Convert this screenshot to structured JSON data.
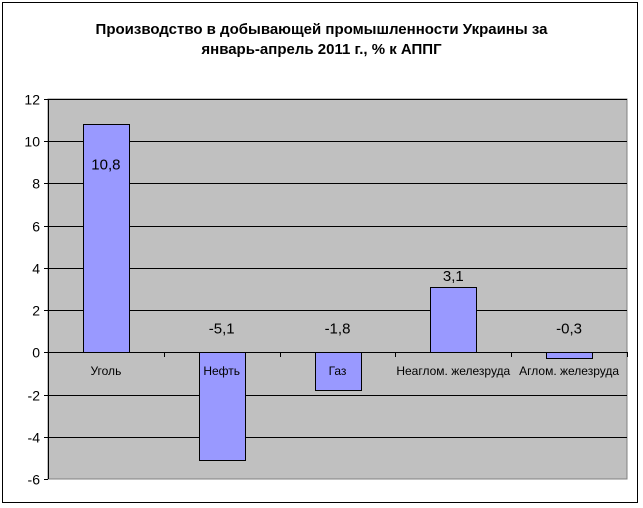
{
  "chart_data": {
    "type": "bar",
    "title_lines": [
      "Производство в добывающей промышленности Украины за",
      "январь-апрель 2011 г., % к АППГ"
    ],
    "categories": [
      "Уголь",
      "Нефть",
      "Газ",
      "Неаглом. железруда",
      "Аглом. железруда"
    ],
    "values": [
      10.8,
      -5.1,
      -1.8,
      3.1,
      -0.3
    ],
    "data_labels": [
      "10,8",
      "-5,1",
      "-1,8",
      "3,1",
      "-0,3"
    ],
    "y_ticks": [
      "12",
      "10",
      "8",
      "6",
      "4",
      "2",
      "0",
      "-2",
      "-4",
      "-6"
    ],
    "ylim": [
      -6,
      12
    ],
    "xlabel": "",
    "ylabel": "",
    "grid": true,
    "legend": "none",
    "colors": {
      "bar_fill": "#9999ff",
      "bar_stroke": "#000000",
      "plot_background": "#c0c0c0",
      "gridline": "#000000"
    }
  }
}
